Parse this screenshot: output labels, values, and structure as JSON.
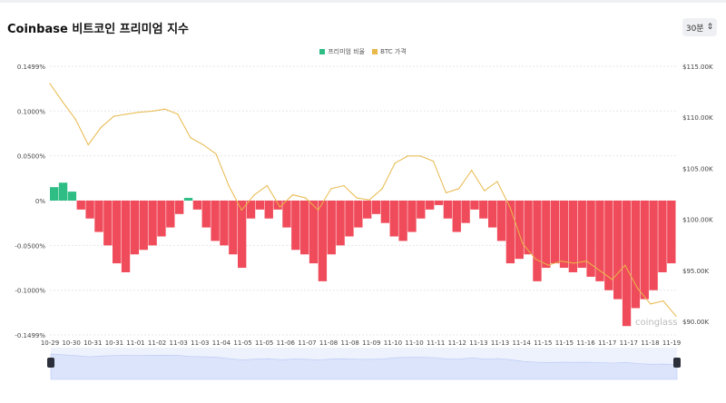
{
  "title": "Coinbase 비트코인 프리미엄 지수",
  "interval_select": {
    "value": "30분",
    "icon": "up-down-chevron-icon"
  },
  "colors": {
    "premium_pos": "#2ebd85",
    "premium_neg": "#f04b5a",
    "btc_price": "#e8b84a",
    "navigator": "#dbe4fb"
  },
  "watermark": "coinglass",
  "chart_data": {
    "type": "bar+line",
    "legend": [
      {
        "name": "프리미엄 비율",
        "color": "#2ebd85"
      },
      {
        "name": "BTC 가격",
        "color": "#e8b84a"
      }
    ],
    "legend_position": "top",
    "x_range": [
      "10-29",
      "11-19"
    ],
    "x_ticks": [
      "10-29",
      "10-30",
      "10-31",
      "10-31",
      "11-01",
      "11-02",
      "11-03",
      "11-03",
      "11-04",
      "11-05",
      "11-05",
      "11-06",
      "11-07",
      "11-08",
      "11-08",
      "11-09",
      "11-10",
      "11-10",
      "11-11",
      "11-12",
      "11-13",
      "11-13",
      "11-14",
      "11-15",
      "11-15",
      "11-16",
      "11-17",
      "11-17",
      "11-18",
      "11-19"
    ],
    "y_left": {
      "ticks": [
        "0.1499%",
        "0.1000%",
        "0.0500%",
        "0%",
        "-0.0500%",
        "-0.1000%",
        "-0.1499%"
      ],
      "range": [
        -0.1499,
        0.1499
      ]
    },
    "y_right": {
      "ticks": [
        "$115.00K",
        "$110.00K",
        "$105.00K",
        "$100.00K",
        "$95.00K",
        "$90.00K"
      ],
      "range": [
        90,
        115
      ]
    },
    "series": [
      {
        "name": "프리미엄 비율",
        "type": "bar",
        "unit": "%",
        "values": [
          0.015,
          0.02,
          0.01,
          -0.01,
          -0.02,
          -0.035,
          -0.05,
          -0.07,
          -0.08,
          -0.06,
          -0.055,
          -0.05,
          -0.04,
          -0.03,
          -0.015,
          0.003,
          -0.01,
          -0.03,
          -0.045,
          -0.05,
          -0.06,
          -0.075,
          -0.02,
          -0.01,
          -0.02,
          -0.01,
          -0.03,
          -0.055,
          -0.06,
          -0.07,
          -0.09,
          -0.06,
          -0.05,
          -0.04,
          -0.03,
          -0.02,
          -0.015,
          -0.025,
          -0.04,
          -0.045,
          -0.035,
          -0.02,
          -0.01,
          -0.005,
          -0.02,
          -0.035,
          -0.025,
          -0.01,
          -0.02,
          -0.03,
          -0.045,
          -0.07,
          -0.065,
          -0.06,
          -0.09,
          -0.075,
          -0.07,
          -0.075,
          -0.08,
          -0.075,
          -0.085,
          -0.09,
          -0.1,
          -0.11,
          -0.14,
          -0.12,
          -0.11,
          -0.1,
          -0.08,
          -0.07
        ]
      },
      {
        "name": "BTC 가격",
        "type": "line",
        "unit": "$K",
        "values": [
          113.3,
          111.5,
          109.8,
          107.3,
          109.0,
          110.1,
          110.3,
          110.5,
          110.6,
          110.8,
          110.3,
          108.0,
          107.3,
          106.4,
          103.3,
          100.9,
          102.4,
          103.3,
          101.2,
          102.4,
          102.1,
          100.9,
          103.0,
          103.3,
          102.1,
          101.9,
          103.0,
          105.5,
          106.2,
          106.2,
          105.7,
          102.6,
          103.0,
          104.8,
          102.8,
          103.7,
          101.2,
          97.6,
          96.1,
          95.5,
          95.9,
          95.7,
          95.9,
          95.0,
          94.1,
          95.5,
          93.2,
          91.7,
          92.0,
          90.5
        ]
      }
    ]
  }
}
